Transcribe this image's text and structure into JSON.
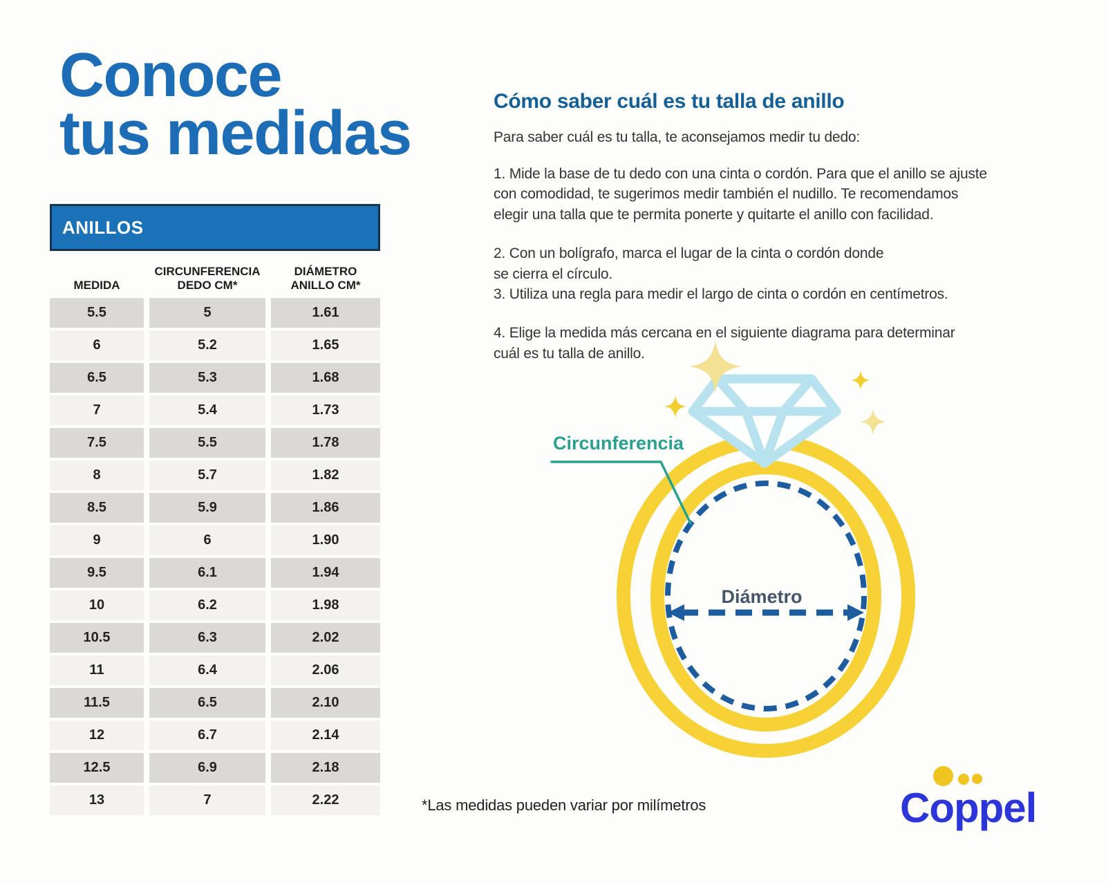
{
  "colors": {
    "title_blue": "#1c6db6",
    "heading_blue": "#155f97",
    "bar_blue": "#1b72b7",
    "bar_border": "#16344f",
    "row_gray": "#dbd9d7",
    "row_light": "#f4f2f0",
    "ring_yellow": "#f6d237",
    "pale_yellow": "#f3e194",
    "diamond_blue": "#b7e2ee",
    "dash_navy": "#1d5c9f",
    "diameter_label_color": "#46566a",
    "teal": "#2aa18f",
    "coppel_blue": "#2c35d8",
    "coppel_yellow": "#f0c521",
    "body_text": "#333333"
  },
  "left": {
    "title_line1": "Conoce",
    "title_line2": "tus medidas",
    "table": {
      "header": "ANILLOS",
      "columns": [
        "MEDIDA",
        "CIRCUNFERENCIA\nDEDO CM*",
        "DIÁMETRO\nANILLO CM*"
      ],
      "rows": [
        [
          "5.5",
          "5",
          "1.61"
        ],
        [
          "6",
          "5.2",
          "1.65"
        ],
        [
          "6.5",
          "5.3",
          "1.68"
        ],
        [
          "7",
          "5.4",
          "1.73"
        ],
        [
          "7.5",
          "5.5",
          "1.78"
        ],
        [
          "8",
          "5.7",
          "1.82"
        ],
        [
          "8.5",
          "5.9",
          "1.86"
        ],
        [
          "9",
          "6",
          "1.90"
        ],
        [
          "9.5",
          "6.1",
          "1.94"
        ],
        [
          "10",
          "6.2",
          "1.98"
        ],
        [
          "10.5",
          "6.3",
          "2.02"
        ],
        [
          "11",
          "6.4",
          "2.06"
        ],
        [
          "11.5",
          "6.5",
          "2.10"
        ],
        [
          "12",
          "6.7",
          "2.14"
        ],
        [
          "12.5",
          "6.9",
          "2.18"
        ],
        [
          "13",
          "7",
          "2.22"
        ]
      ]
    }
  },
  "right": {
    "heading": "Cómo saber cuál es tu talla de anillo",
    "intro": "Para saber cuál es tu talla, te aconsejamos medir tu dedo:",
    "steps": [
      "1. Mide la base de tu dedo con una cinta o cordón. Para que el anillo se ajuste\ncon comodidad, te sugerimos medir también el nudillo. Te recomendamos\nelegir una talla que te permita ponerte y quitarte el anillo con facilidad.",
      "2. Con un bolígrafo, marca el lugar de la cinta o cordón donde\nse cierra el círculo.",
      "3. Utiliza una regla para medir el largo de cinta o cordón en centímetros.",
      "4. Elige la medida más cercana en el siguiente diagrama para determinar\ncuál es tu talla de anillo."
    ],
    "diagram": {
      "circumference_label": "Circunferencia",
      "diameter_label": "Diámetro"
    }
  },
  "footnote": "*Las medidas pueden variar por milímetros",
  "logo": {
    "brand": "Coppel"
  }
}
